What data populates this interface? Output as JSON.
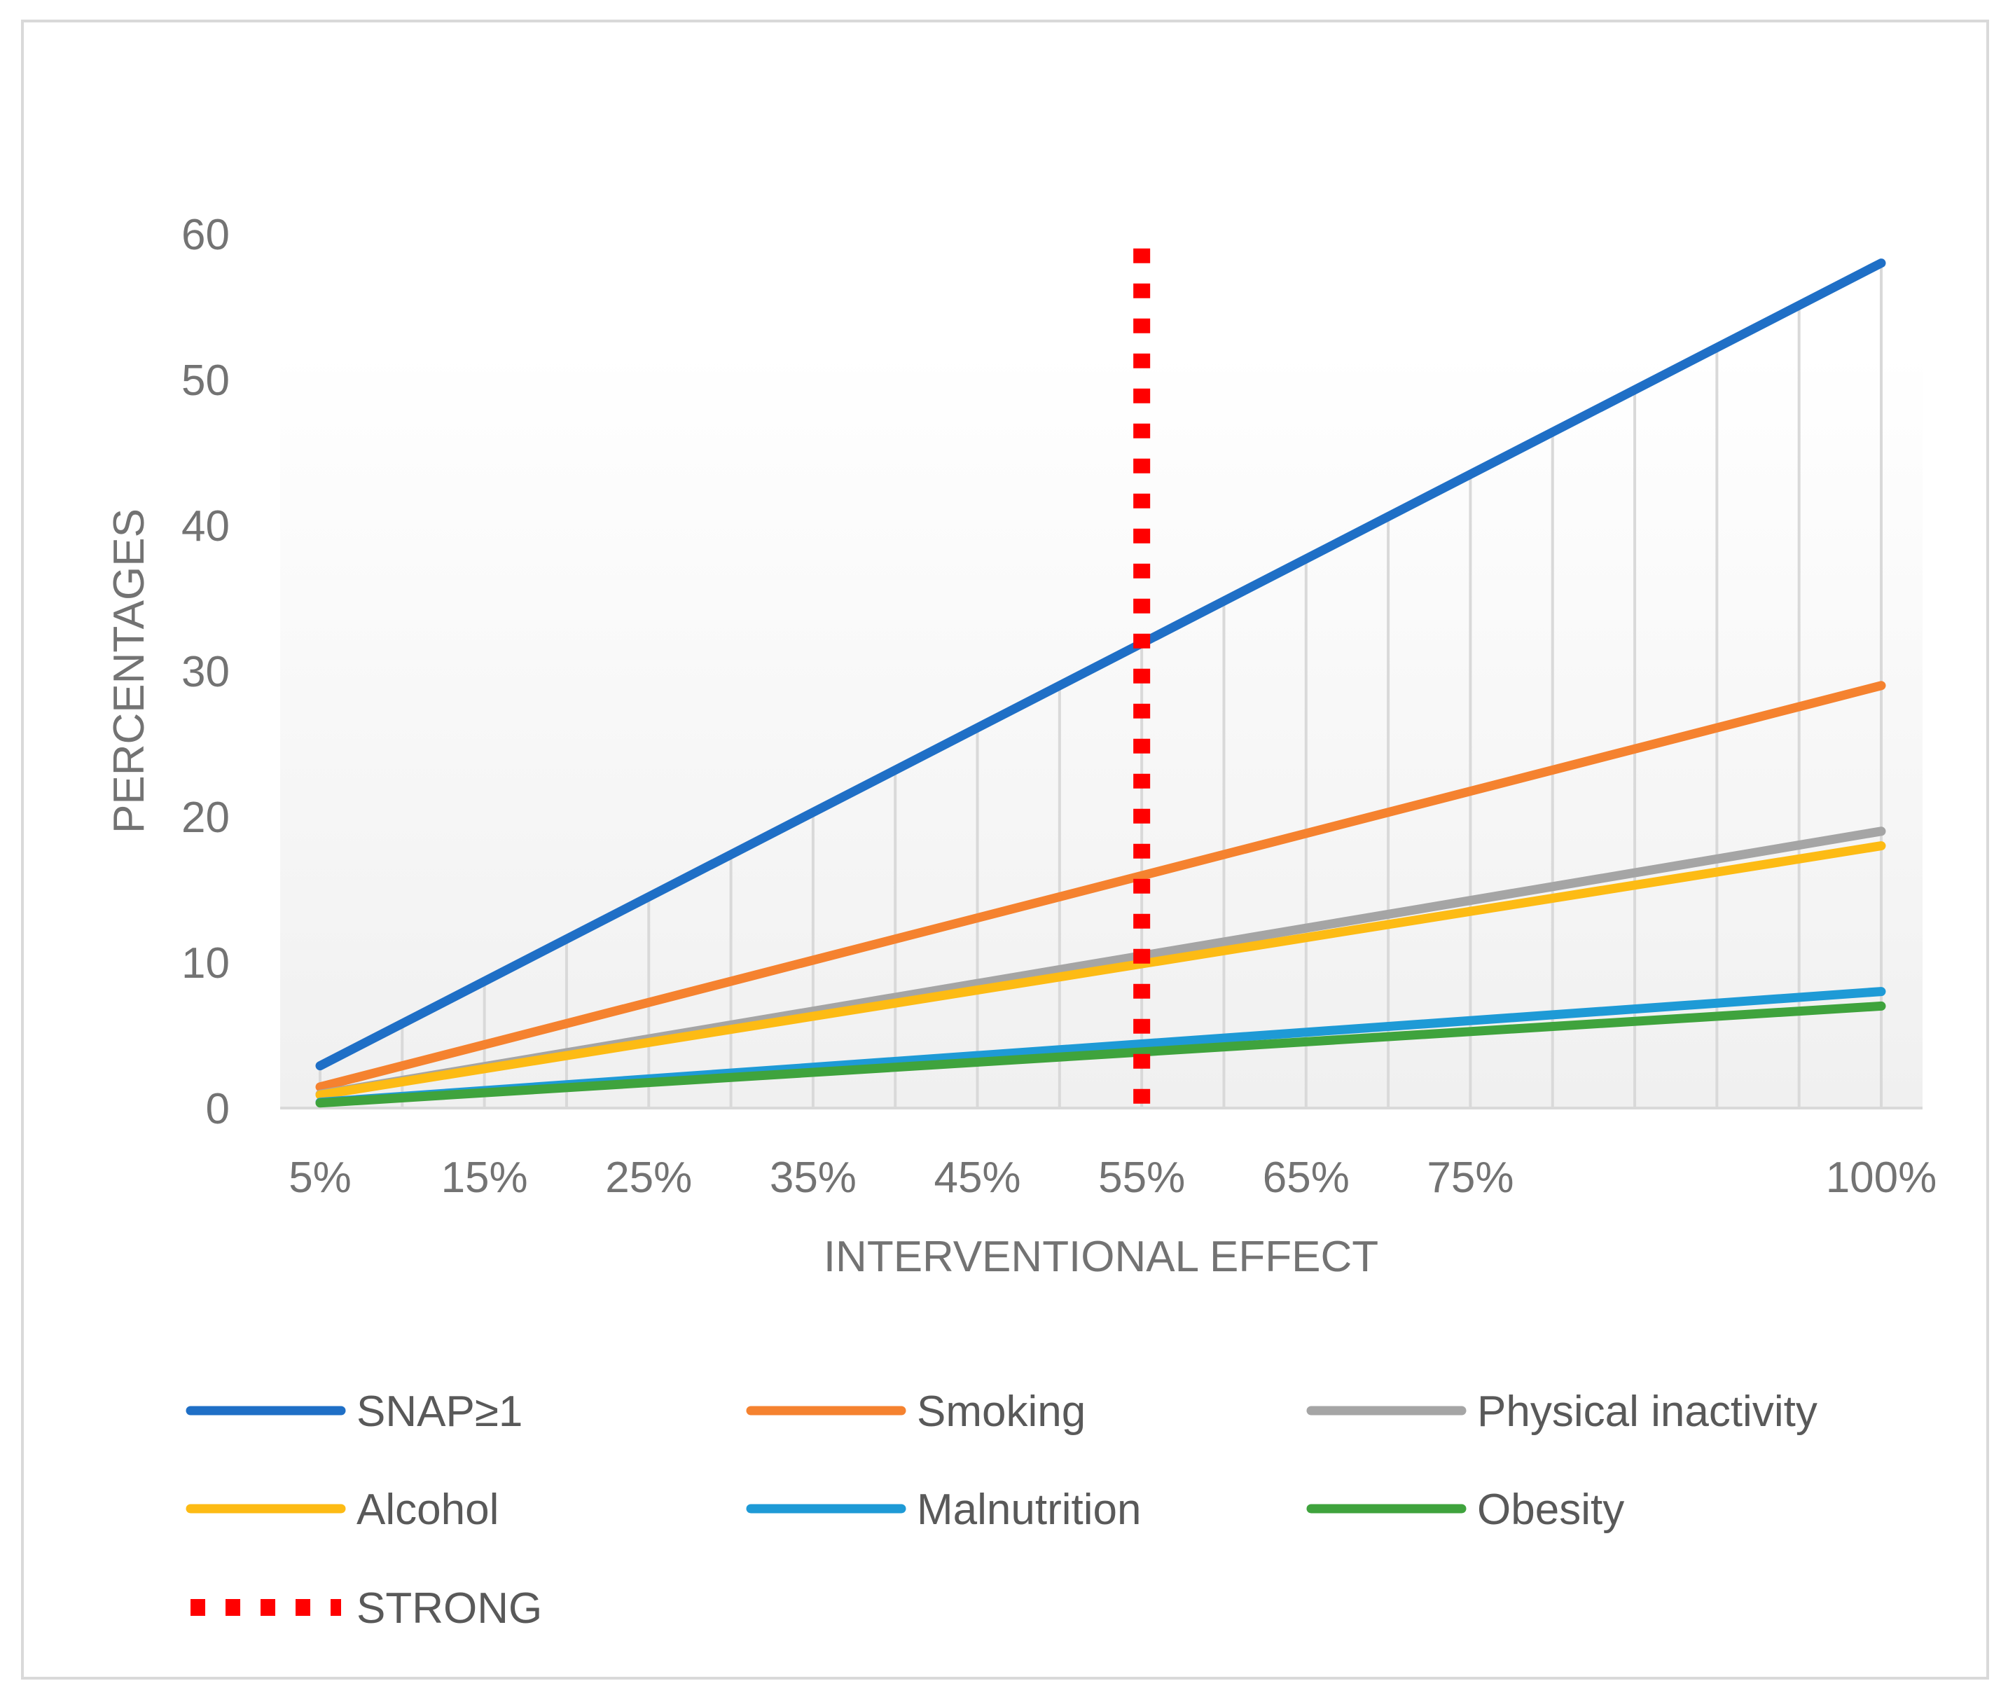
{
  "chart_data": {
    "type": "line",
    "title": "",
    "xlabel": "INTERVENTIONAL EFFECT",
    "ylabel": "PERCENTAGES",
    "x": [
      5,
      10,
      15,
      20,
      25,
      30,
      35,
      40,
      45,
      50,
      55,
      60,
      65,
      70,
      75,
      80,
      85,
      90,
      95,
      100
    ],
    "x_tick_values": [
      5,
      15,
      25,
      35,
      45,
      55,
      65,
      75,
      100
    ],
    "x_tick_labels": [
      "5%",
      "15%",
      "25%",
      "35%",
      "45%",
      "55%",
      "65%",
      "75%",
      "100%"
    ],
    "xlim": [
      5,
      100
    ],
    "ylim": [
      0,
      60
    ],
    "y_ticks": [
      0,
      10,
      20,
      30,
      40,
      50,
      60
    ],
    "y_tick_labels": [
      "0",
      "10",
      "20",
      "30",
      "40",
      "50",
      "60"
    ],
    "grid": "vertical",
    "legend_position": "bottom",
    "series": [
      {
        "name": "SNAP≥1",
        "color": "#1f6fc6",
        "x": [
          5,
          100
        ],
        "values": [
          2.9,
          58
        ]
      },
      {
        "name": "Smoking",
        "color": "#f5822f",
        "x": [
          5,
          100
        ],
        "values": [
          1.45,
          29
        ]
      },
      {
        "name": "Physical inactivity",
        "color": "#a5a5a5",
        "x": [
          5,
          100
        ],
        "values": [
          0.95,
          19
        ]
      },
      {
        "name": "Alcohol",
        "color": "#fdbb14",
        "x": [
          5,
          100
        ],
        "values": [
          0.9,
          18
        ]
      },
      {
        "name": "Malnutrition",
        "color": "#1e9ad6",
        "x": [
          5,
          100
        ],
        "values": [
          0.4,
          8
        ]
      },
      {
        "name": "Obesity",
        "color": "#3fa33d",
        "x": [
          5,
          100
        ],
        "values": [
          0.35,
          7
        ]
      }
    ],
    "reference_line": {
      "name": "STRONG",
      "color": "#ff0000",
      "x": 55,
      "style": "dotted",
      "y_range": [
        0,
        59
      ]
    }
  }
}
